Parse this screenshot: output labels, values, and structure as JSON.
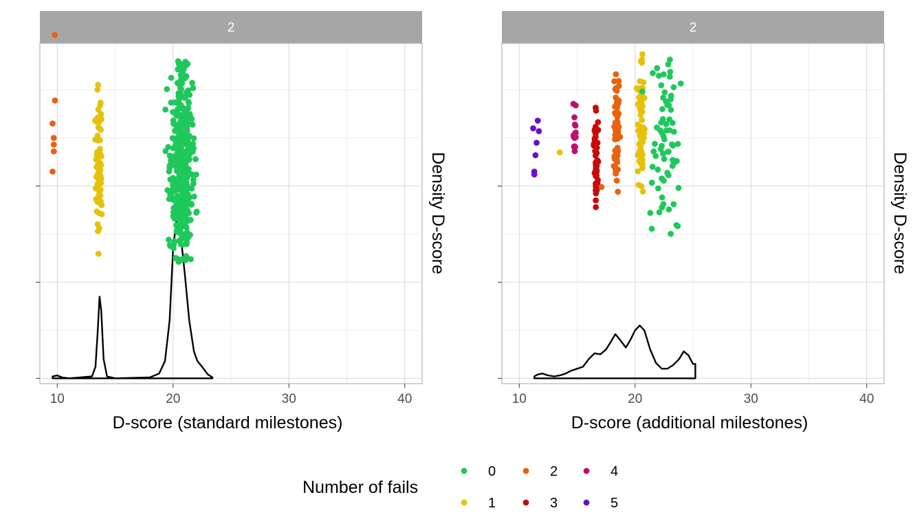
{
  "legend": {
    "title": "Number of fails",
    "position": "bottom",
    "items": [
      {
        "label": "0",
        "color": "#1ec85a"
      },
      {
        "label": "1",
        "color": "#e6c10c"
      },
      {
        "label": "2",
        "color": "#e8620f"
      },
      {
        "label": "3",
        "color": "#c80a0a"
      },
      {
        "label": "4",
        "color": "#c00e6e"
      },
      {
        "label": "5",
        "color": "#6a0fc8"
      }
    ]
  },
  "chart_data": [
    {
      "type": "scatter",
      "facet_label": "2",
      "xlabel": "D-score (standard milestones)",
      "ylabel": "Density D-score",
      "xlim": [
        8.5,
        41.5
      ],
      "xticks": [
        10,
        20,
        30,
        40
      ],
      "grid": true,
      "density_curve": [
        [
          9.6,
          0.002
        ],
        [
          10.0,
          0.003
        ],
        [
          10.4,
          0.001
        ],
        [
          11,
          0
        ],
        [
          12,
          0.001
        ],
        [
          13,
          0.002
        ],
        [
          13.3,
          0.012
        ],
        [
          13.5,
          0.05
        ],
        [
          13.65,
          0.085
        ],
        [
          13.8,
          0.07
        ],
        [
          14.0,
          0.02
        ],
        [
          14.3,
          0.002
        ],
        [
          15,
          0
        ],
        [
          18,
          0.001
        ],
        [
          18.8,
          0.005
        ],
        [
          19.3,
          0.018
        ],
        [
          19.7,
          0.06
        ],
        [
          20.0,
          0.135
        ],
        [
          20.3,
          0.165
        ],
        [
          20.6,
          0.155
        ],
        [
          21.0,
          0.11
        ],
        [
          21.4,
          0.06
        ],
        [
          21.8,
          0.028
        ],
        [
          22.1,
          0.018
        ],
        [
          22.5,
          0.012
        ],
        [
          23.0,
          0.004
        ],
        [
          23.4,
          0.001
        ]
      ],
      "points": [
        {
          "x": 9.6,
          "y": 0.215,
          "fails": 2
        },
        {
          "x": 9.6,
          "y": 0.265,
          "fails": 2
        },
        {
          "x": 9.7,
          "y": 0.243,
          "fails": 2
        },
        {
          "x": 9.7,
          "y": 0.236,
          "fails": 2
        },
        {
          "x": 9.7,
          "y": 0.25,
          "fails": 2
        },
        {
          "x": 9.8,
          "y": 0.289,
          "fails": 2
        },
        {
          "x": 9.8,
          "y": 0.357,
          "fails": 2
        }
      ],
      "clusters": [
        {
          "fails": 1,
          "x_center": 13.6,
          "x_spread": 0.25,
          "y_min": 0.125,
          "y_max": 0.315,
          "count": 90
        },
        {
          "fails": 0,
          "x_center": 20.7,
          "x_spread": 0.85,
          "y_min": 0.12,
          "y_max": 0.33,
          "count": 450
        }
      ]
    },
    {
      "type": "scatter",
      "facet_label": "2",
      "xlabel": "D-score (additional milestones)",
      "ylabel": "Density D-score",
      "xlim": [
        8.5,
        41.5
      ],
      "xticks": [
        10,
        20,
        30,
        40
      ],
      "grid": true,
      "density_curve": [
        [
          11.3,
          0.002
        ],
        [
          11.6,
          0.004
        ],
        [
          12,
          0.005
        ],
        [
          12.5,
          0.003
        ],
        [
          13,
          0.002
        ],
        [
          13.5,
          0.003
        ],
        [
          14,
          0.005
        ],
        [
          14.5,
          0.008
        ],
        [
          15,
          0.01
        ],
        [
          15.5,
          0.012
        ],
        [
          16,
          0.02
        ],
        [
          16.5,
          0.026
        ],
        [
          17,
          0.025
        ],
        [
          17.5,
          0.03
        ],
        [
          18,
          0.04
        ],
        [
          18.3,
          0.046
        ],
        [
          18.7,
          0.04
        ],
        [
          19.2,
          0.032
        ],
        [
          19.6,
          0.04
        ],
        [
          20.0,
          0.05
        ],
        [
          20.4,
          0.055
        ],
        [
          20.8,
          0.05
        ],
        [
          21.3,
          0.03
        ],
        [
          21.8,
          0.016
        ],
        [
          22.3,
          0.01
        ],
        [
          22.8,
          0.01
        ],
        [
          23.3,
          0.014
        ],
        [
          23.8,
          0.02
        ],
        [
          24.2,
          0.028
        ],
        [
          24.6,
          0.024
        ],
        [
          25.0,
          0.015
        ],
        [
          25.2,
          0.015
        ]
      ],
      "points": [
        {
          "x": 11.3,
          "y": 0.215,
          "fails": 5
        },
        {
          "x": 11.6,
          "y": 0.268,
          "fails": 5
        },
        {
          "x": 11.5,
          "y": 0.245,
          "fails": 5
        },
        {
          "x": 11.3,
          "y": 0.212,
          "fails": 5
        },
        {
          "x": 11.4,
          "y": 0.232,
          "fails": 5
        },
        {
          "x": 11.7,
          "y": 0.257,
          "fails": 5
        },
        {
          "x": 11.2,
          "y": 0.26,
          "fails": 5
        },
        {
          "x": 17.1,
          "y": 0.199,
          "fails": 2
        },
        {
          "x": 13.5,
          "y": 0.235,
          "fails": 1
        }
      ],
      "clusters": [
        {
          "fails": 4,
          "x_center": 14.8,
          "x_spread": 0.12,
          "y_min": 0.205,
          "y_max": 0.29,
          "count": 16
        },
        {
          "fails": 3,
          "x_center": 16.6,
          "x_spread": 0.15,
          "y_min": 0.175,
          "y_max": 0.285,
          "count": 55
        },
        {
          "fails": 2,
          "x_center": 18.4,
          "x_spread": 0.2,
          "y_min": 0.19,
          "y_max": 0.33,
          "count": 65
        },
        {
          "fails": 1,
          "x_center": 20.5,
          "x_spread": 0.25,
          "y_min": 0.19,
          "y_max": 0.34,
          "count": 75
        },
        {
          "fails": 0,
          "x_center": 22.6,
          "x_spread": 1.6,
          "y_min": 0.14,
          "y_max": 0.345,
          "count": 70
        }
      ]
    }
  ]
}
